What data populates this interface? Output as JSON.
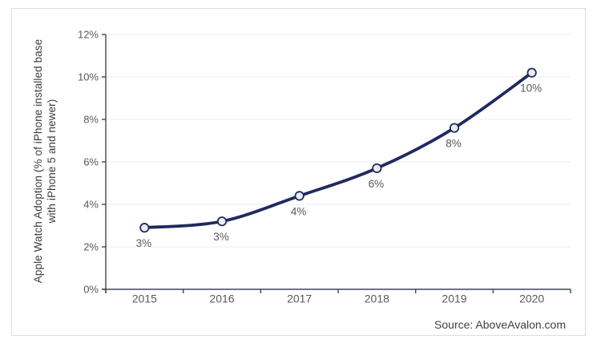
{
  "chart_data": {
    "type": "line",
    "title": "",
    "categories": [
      "2015",
      "2016",
      "2017",
      "2018",
      "2019",
      "2020"
    ],
    "values": [
      2.9,
      3.2,
      4.4,
      5.7,
      7.6,
      10.2
    ],
    "point_labels": [
      "3%",
      "3%",
      "4%",
      "6%",
      "8%",
      "10%"
    ],
    "ylabel_line1": "Apple Watch Adoption (% of iPhone installed base",
    "ylabel_line2": "with iPhone 5 and newer)",
    "y_tick_labels": [
      "0%",
      "2%",
      "4%",
      "6%",
      "8%",
      "10%",
      "12%"
    ],
    "ylim": [
      0,
      12
    ],
    "y_tick_step": 2,
    "grid": "horizontal",
    "legend": "none",
    "smoothed_line": true,
    "source": "Source: AboveAvalon.com",
    "colors": {
      "line": "#1f2a5e",
      "marker_fill": "#eceef4",
      "marker_stroke": "#1f2a5e",
      "axis": "#3e4656",
      "grid": "#ededed",
      "tick_label": "#595959",
      "point_label": "#595959",
      "axis_title": "#3d3d3d",
      "source_text": "#404040",
      "chart_border": "#dcdcdc"
    }
  }
}
